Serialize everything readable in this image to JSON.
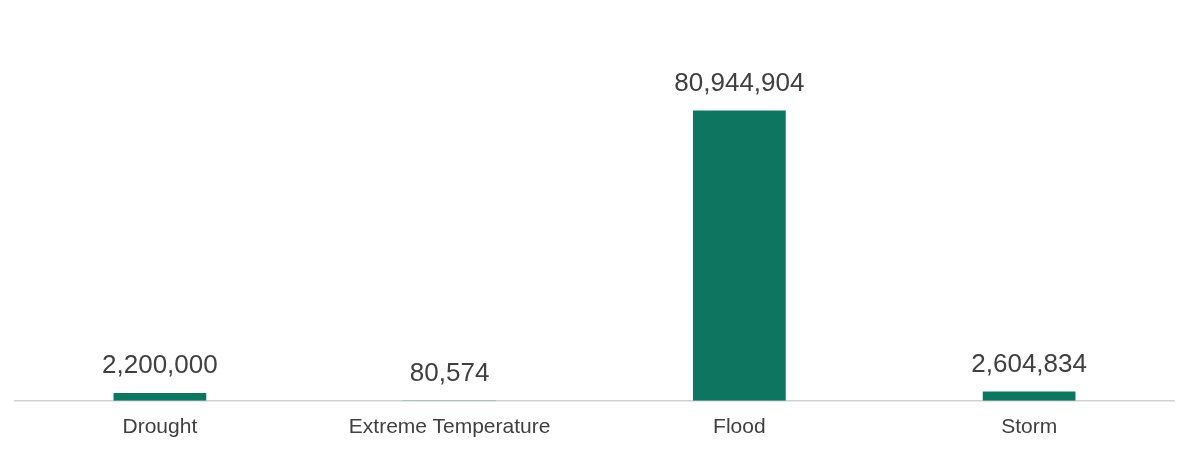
{
  "chart_data": {
    "type": "bar",
    "categories": [
      "Drought",
      "Extreme Temperature",
      "Flood",
      "Storm"
    ],
    "values": [
      2200000,
      80574,
      80944904,
      2604834
    ],
    "value_labels": [
      "2,200,000",
      "80,574",
      "80,944,904",
      "2,604,834"
    ],
    "color": "#0e7560",
    "grid": false,
    "legend": false,
    "tick_labels": "x"
  }
}
